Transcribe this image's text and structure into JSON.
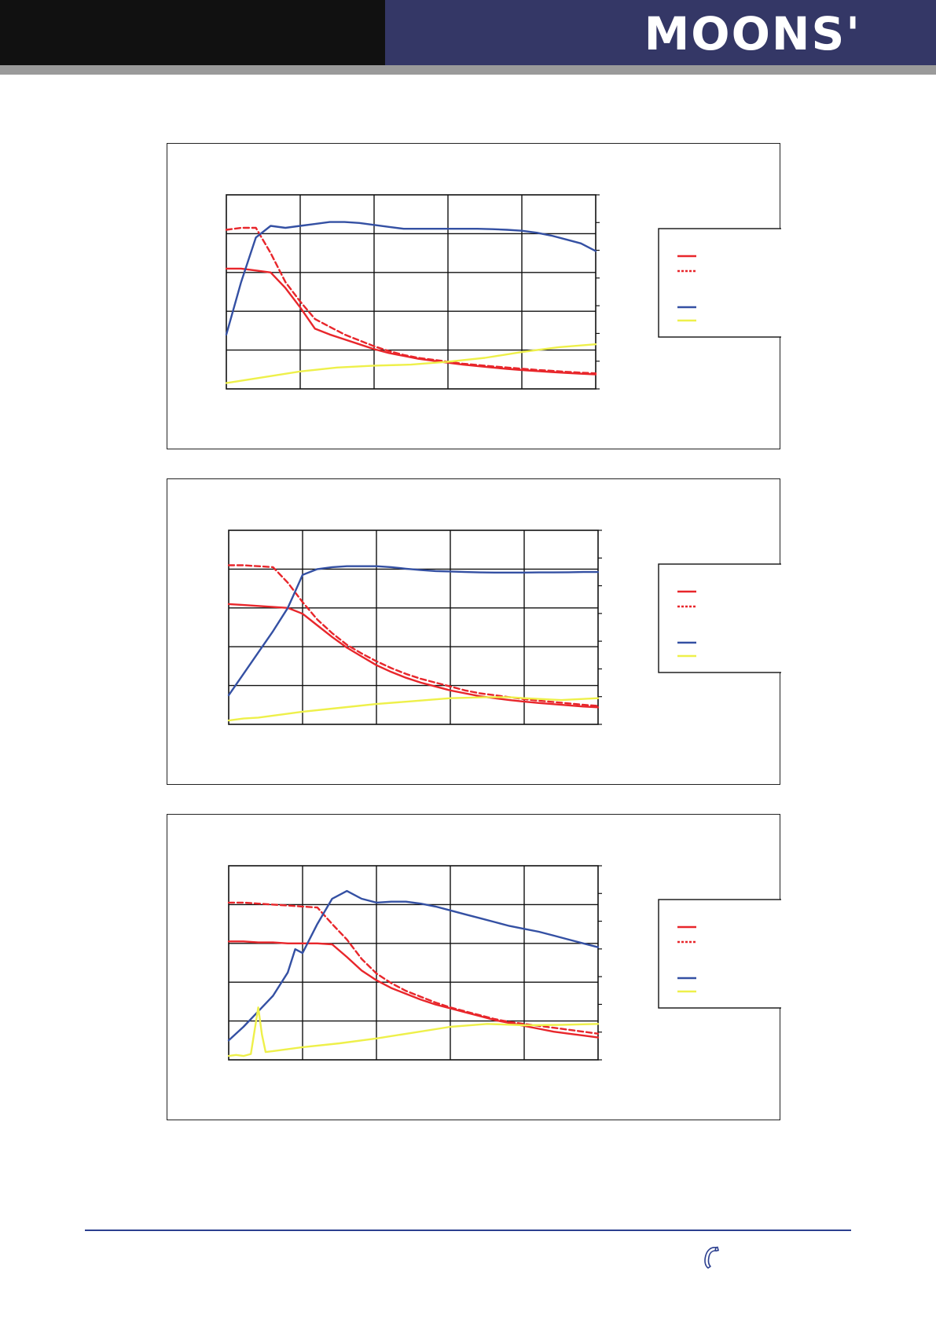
{
  "header": {
    "logo_text": "MOONS'",
    "colors": {
      "left_band": "#111111",
      "right_band": "#343766",
      "strip": "#9a9a9a"
    }
  },
  "footer": {
    "phone_icon": "phone-icon",
    "rule_color": "#2b3f8f"
  },
  "series_colors": {
    "torque_solid": "#e8262b",
    "torque_dashed": "#e8262b",
    "power": "#3450a3",
    "current": "#eef04a"
  },
  "chart_data": [
    {
      "type": "line",
      "x_range": [
        0,
        50
      ],
      "y_range": [
        0,
        100
      ],
      "grid_columns": 5,
      "grid_rows": 5,
      "series": [
        {
          "style": "solid",
          "color": "#e8262b",
          "x": [
            0,
            2,
            4,
            6,
            8,
            10,
            12,
            14,
            16,
            18,
            20,
            22,
            24,
            26,
            28,
            30,
            32,
            34,
            36,
            38,
            40,
            42,
            44,
            46,
            48,
            50
          ],
          "y": [
            62,
            62,
            61,
            60,
            52,
            42,
            31,
            28,
            25.5,
            23,
            20.5,
            18.5,
            17,
            15.5,
            14.5,
            13.5,
            12.5,
            11.8,
            11,
            10.3,
            9.7,
            9.2,
            8.7,
            8.2,
            7.8,
            7.5
          ]
        },
        {
          "style": "dashed",
          "color": "#e8262b",
          "x": [
            0,
            2,
            4,
            6,
            8,
            10,
            12,
            14,
            16,
            18,
            20,
            22,
            24,
            26,
            28,
            30,
            32,
            34,
            36,
            38,
            40,
            42,
            44,
            46,
            48,
            50
          ],
          "y": [
            82,
            83,
            83,
            70,
            55,
            45,
            36,
            32,
            28,
            25,
            22,
            19.5,
            17.5,
            16,
            15,
            14,
            13,
            12.3,
            11.6,
            11,
            10.4,
            9.8,
            9.3,
            8.8,
            8.4,
            8
          ]
        },
        {
          "style": "solid",
          "color": "#3450a3",
          "x": [
            0,
            2,
            4,
            6,
            8,
            10,
            12,
            14,
            16,
            18,
            20,
            22,
            24,
            26,
            28,
            30,
            32,
            34,
            36,
            38,
            40,
            42,
            44,
            46,
            48,
            50
          ],
          "y": [
            28,
            55,
            78,
            84,
            83,
            84,
            85,
            86,
            86,
            85.5,
            84.5,
            83.5,
            82.5,
            82.5,
            82.5,
            82.5,
            82.5,
            82.5,
            82.3,
            82,
            81.5,
            80.5,
            79,
            77,
            75,
            71
          ]
        },
        {
          "style": "solid",
          "color": "#eef04a",
          "x": [
            0,
            5,
            10,
            15,
            20,
            25,
            30,
            35,
            40,
            45,
            50
          ],
          "y": [
            3,
            6,
            9,
            11,
            12,
            12.5,
            14,
            16,
            19,
            21.5,
            23
          ]
        }
      ],
      "legend": {
        "position": "right",
        "entries": []
      }
    },
    {
      "type": "line",
      "x_range": [
        0,
        50
      ],
      "y_range": [
        0,
        100
      ],
      "grid_columns": 5,
      "grid_rows": 5,
      "series": [
        {
          "style": "solid",
          "color": "#e8262b",
          "x": [
            0,
            2,
            4,
            6,
            8,
            10,
            12,
            14,
            16,
            18,
            20,
            22,
            24,
            26,
            28,
            30,
            32,
            34,
            36,
            38,
            40,
            42,
            44,
            46,
            48,
            50
          ],
          "y": [
            62,
            61.5,
            61,
            60.5,
            60,
            57,
            51,
            45,
            39.5,
            35,
            30.5,
            27,
            24,
            21.5,
            19.5,
            17.5,
            16,
            14.5,
            13.5,
            12.5,
            11.7,
            11,
            10.4,
            9.8,
            9.2,
            8.8
          ]
        },
        {
          "style": "dashed",
          "color": "#e8262b",
          "x": [
            0,
            2,
            4,
            6,
            8,
            10,
            12,
            14,
            16,
            18,
            20,
            22,
            24,
            26,
            28,
            30,
            32,
            34,
            36,
            38,
            40,
            42,
            44,
            46,
            48,
            50
          ],
          "y": [
            82,
            82,
            81.5,
            81,
            73,
            63,
            54,
            47,
            41,
            36.5,
            32.5,
            29,
            26,
            23.5,
            21.5,
            19.5,
            17.5,
            16,
            15,
            14,
            13,
            12.2,
            11.5,
            10.8,
            10.1,
            9.5
          ]
        },
        {
          "style": "solid",
          "color": "#3450a3",
          "x": [
            0,
            2,
            4,
            6,
            8,
            10,
            12,
            14,
            16,
            18,
            20,
            22,
            24,
            26,
            28,
            30,
            32,
            34,
            36,
            38,
            40,
            42,
            44,
            46,
            48,
            50
          ],
          "y": [
            15,
            26,
            37,
            48,
            60,
            77,
            80,
            81,
            81.5,
            81.5,
            81.5,
            81,
            80.2,
            79.5,
            79,
            78.8,
            78.5,
            78.3,
            78.2,
            78.2,
            78.2,
            78.3,
            78.3,
            78.4,
            78.5,
            78.5
          ]
        },
        {
          "style": "solid",
          "color": "#eef04a",
          "x": [
            0,
            2,
            4,
            6,
            8,
            10,
            15,
            20,
            25,
            30,
            35,
            38,
            40,
            45,
            50
          ],
          "y": [
            2,
            3,
            3.5,
            4.5,
            5.5,
            6.5,
            8.5,
            10.5,
            12,
            13.5,
            14,
            14,
            13.5,
            12.5,
            13.5
          ]
        }
      ],
      "legend": {
        "position": "right",
        "entries": []
      }
    },
    {
      "type": "line",
      "x_range": [
        0,
        50
      ],
      "y_range": [
        0,
        100
      ],
      "grid_columns": 5,
      "grid_rows": 5,
      "series": [
        {
          "style": "solid",
          "color": "#e8262b",
          "x": [
            0,
            2,
            4,
            6,
            8,
            10,
            12,
            14,
            16,
            18,
            20,
            22,
            24,
            26,
            28,
            30,
            32,
            34,
            36,
            38,
            40,
            42,
            44,
            46,
            48,
            50
          ],
          "y": [
            61,
            61,
            60.5,
            60.5,
            60,
            60,
            60,
            59.5,
            53,
            46,
            41,
            37,
            34,
            31,
            28.5,
            26.5,
            24.5,
            22.5,
            20.5,
            19,
            17.5,
            16,
            14.5,
            13.5,
            12.5,
            11.5
          ]
        },
        {
          "style": "dashed",
          "color": "#e8262b",
          "x": [
            0,
            2,
            4,
            6,
            8,
            10,
            12,
            14,
            16,
            18,
            20,
            22,
            24,
            26,
            28,
            30,
            32,
            34,
            36,
            38,
            40,
            42,
            44,
            46,
            48,
            50
          ],
          "y": [
            81,
            81,
            80.5,
            80,
            79.5,
            79,
            78.5,
            70,
            62,
            52,
            44.5,
            39.5,
            35.5,
            32.5,
            29.5,
            27,
            25,
            23,
            21,
            19.5,
            18.5,
            17.5,
            16.5,
            15.5,
            14.5,
            13.5
          ]
        },
        {
          "style": "solid",
          "color": "#3450a3",
          "x": [
            0,
            2,
            4,
            6,
            8,
            9,
            10,
            12,
            14,
            16,
            18,
            20,
            22,
            24,
            26,
            28,
            30,
            32,
            34,
            36,
            38,
            40,
            42,
            44,
            46,
            48,
            50
          ],
          "y": [
            10,
            17,
            25,
            33,
            45,
            57,
            55,
            70,
            83,
            87,
            83,
            81,
            81.5,
            81.5,
            80.5,
            79,
            77,
            75,
            73,
            71,
            69,
            67.5,
            66,
            64,
            62,
            60,
            58
          ]
        },
        {
          "style": "solid",
          "color": "#eef04a",
          "x": [
            0,
            1,
            2,
            3,
            4,
            4.5,
            5,
            6,
            8,
            10,
            15,
            20,
            25,
            30,
            35,
            40,
            45,
            50
          ],
          "y": [
            2,
            2.5,
            2,
            3,
            27,
            13,
            4,
            4.5,
            5.5,
            6.5,
            8.5,
            11,
            14,
            17,
            18.5,
            17.8,
            18,
            18.5
          ]
        }
      ],
      "legend": {
        "position": "right",
        "entries": []
      }
    }
  ]
}
